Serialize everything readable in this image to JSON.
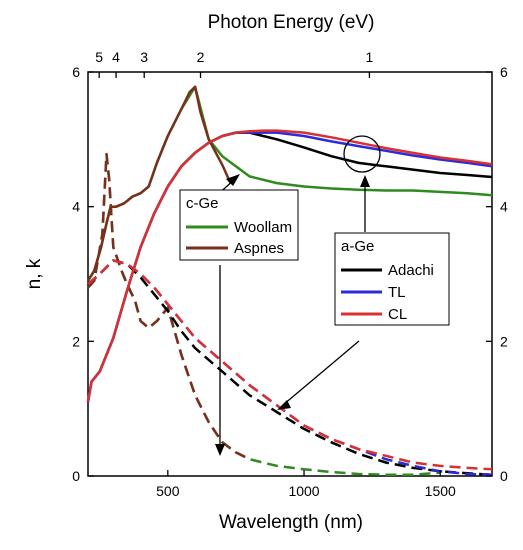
{
  "chart_data": {
    "type": "line",
    "xlabel": "Wavelength (nm)",
    "ylabel": "n, k",
    "top_label": "Photon Energy (eV)",
    "xlim": [
      207,
      1690
    ],
    "ylim": [
      0,
      6
    ],
    "x_ticks": [
      500,
      1000,
      1500
    ],
    "y_ticks": [
      0,
      2,
      4,
      6
    ],
    "top_ticks": [
      {
        "label": "5",
        "ev": 5
      },
      {
        "label": "4",
        "ev": 4
      },
      {
        "label": "3",
        "ev": 3
      },
      {
        "label": "2",
        "ev": 2
      },
      {
        "label": "1",
        "ev": 1
      }
    ],
    "grid": false,
    "series": [
      {
        "name": "Woollam",
        "group": "c-Ge",
        "quantity": "n",
        "style": "solid",
        "color": "#2e8b1e",
        "x": [
          207,
          230,
          255,
          275,
          290,
          310,
          340,
          370,
          400,
          430,
          460,
          500,
          550,
          600,
          650,
          700,
          800,
          900,
          1000,
          1100,
          1200,
          1300,
          1400,
          1500,
          1600,
          1690
        ],
        "y": [
          2.9,
          3.05,
          3.4,
          3.75,
          4.0,
          4.0,
          4.05,
          4.15,
          4.2,
          4.3,
          4.65,
          5.05,
          5.45,
          5.78,
          5.0,
          4.75,
          4.45,
          4.35,
          4.3,
          4.27,
          4.25,
          4.24,
          4.24,
          4.22,
          4.2,
          4.17
        ]
      },
      {
        "name": "Aspnes",
        "group": "c-Ge",
        "quantity": "n",
        "style": "solid",
        "color": "#7a2e1e",
        "x": [
          207,
          230,
          255,
          275,
          290,
          310,
          340,
          370,
          400,
          430,
          460,
          500,
          550,
          580,
          600,
          620,
          650,
          700,
          730
        ],
        "y": [
          2.9,
          3.05,
          3.4,
          3.75,
          4.0,
          4.0,
          4.05,
          4.15,
          4.2,
          4.3,
          4.65,
          5.05,
          5.45,
          5.7,
          5.78,
          5.4,
          5.0,
          4.62,
          4.35
        ]
      },
      {
        "name": "Adachi",
        "group": "a-Ge",
        "quantity": "n",
        "style": "solid",
        "color": "#000000",
        "x": [
          207,
          220,
          250,
          300,
          350,
          400,
          450,
          500,
          550,
          600,
          650,
          700,
          750,
          800,
          850,
          900,
          1000,
          1100,
          1200,
          1300,
          1400,
          1500,
          1600,
          1690
        ],
        "y": [
          1.1,
          1.4,
          1.55,
          2.05,
          2.75,
          3.4,
          3.9,
          4.3,
          4.6,
          4.8,
          4.95,
          5.05,
          5.1,
          5.1,
          5.05,
          5.0,
          4.88,
          4.75,
          4.65,
          4.6,
          4.55,
          4.5,
          4.47,
          4.44
        ]
      },
      {
        "name": "TL",
        "group": "a-Ge",
        "quantity": "n",
        "style": "solid",
        "color": "#2b2bd9",
        "x": [
          207,
          220,
          250,
          300,
          350,
          400,
          450,
          500,
          550,
          600,
          650,
          700,
          750,
          800,
          850,
          900,
          1000,
          1100,
          1200,
          1300,
          1400,
          1500,
          1600,
          1690
        ],
        "y": [
          1.1,
          1.4,
          1.55,
          2.05,
          2.75,
          3.4,
          3.9,
          4.3,
          4.6,
          4.8,
          4.95,
          5.05,
          5.1,
          5.1,
          5.1,
          5.1,
          5.05,
          4.97,
          4.9,
          4.83,
          4.76,
          4.7,
          4.65,
          4.6
        ]
      },
      {
        "name": "CL",
        "group": "a-Ge",
        "quantity": "n",
        "style": "solid",
        "color": "#d93030",
        "x": [
          207,
          220,
          250,
          300,
          350,
          400,
          450,
          500,
          550,
          600,
          650,
          700,
          750,
          800,
          850,
          900,
          1000,
          1100,
          1200,
          1300,
          1400,
          1500,
          1600,
          1690
        ],
        "y": [
          1.1,
          1.4,
          1.55,
          2.05,
          2.75,
          3.4,
          3.9,
          4.3,
          4.6,
          4.8,
          4.95,
          5.05,
          5.1,
          5.12,
          5.13,
          5.13,
          5.1,
          5.03,
          4.95,
          4.87,
          4.8,
          4.73,
          4.68,
          4.63
        ]
      },
      {
        "name": "Woollam",
        "group": "c-Ge",
        "quantity": "k",
        "style": "dashed",
        "color": "#2e8b1e",
        "x": [
          207,
          230,
          260,
          275,
          285,
          300,
          330,
          350,
          380,
          400,
          430,
          460,
          500,
          550,
          600,
          650,
          700,
          750,
          800,
          900,
          1000,
          1100,
          1200,
          1300,
          1400,
          1500
        ],
        "y": [
          2.8,
          2.9,
          3.6,
          4.78,
          4.4,
          3.4,
          3.05,
          2.85,
          2.6,
          2.3,
          2.2,
          2.3,
          2.5,
          1.8,
          1.2,
          0.8,
          0.5,
          0.35,
          0.25,
          0.15,
          0.1,
          0.06,
          0.03,
          0.02,
          0.02,
          0.05
        ]
      },
      {
        "name": "Aspnes",
        "group": "c-Ge",
        "quantity": "k",
        "style": "dashed",
        "color": "#7a2e1e",
        "x": [
          207,
          230,
          260,
          275,
          285,
          300,
          330,
          350,
          380,
          400,
          430,
          460,
          500,
          550,
          600,
          650,
          700,
          750,
          800
        ],
        "y": [
          2.8,
          2.9,
          3.6,
          4.78,
          4.4,
          3.4,
          3.05,
          2.85,
          2.6,
          2.3,
          2.2,
          2.3,
          2.5,
          1.8,
          1.2,
          0.8,
          0.5,
          0.35,
          0.25
        ]
      },
      {
        "name": "Adachi",
        "group": "a-Ge",
        "quantity": "k",
        "style": "dashed",
        "color": "#000000",
        "x": [
          207,
          250,
          300,
          350,
          400,
          450,
          500,
          550,
          600,
          700,
          800,
          900,
          1000,
          1100,
          1200,
          1300,
          1400,
          1500,
          1600,
          1690
        ],
        "y": [
          2.85,
          3.0,
          3.2,
          3.15,
          2.95,
          2.7,
          2.45,
          2.15,
          1.9,
          1.55,
          1.2,
          0.95,
          0.7,
          0.5,
          0.33,
          0.2,
          0.12,
          0.07,
          0.04,
          0.02
        ]
      },
      {
        "name": "TL",
        "group": "a-Ge",
        "quantity": "k",
        "style": "dashed",
        "color": "#2b2bd9",
        "x": [
          207,
          250,
          300,
          350,
          400,
          450,
          500,
          550,
          600,
          700,
          800,
          900,
          1000,
          1100,
          1200,
          1300,
          1400,
          1500,
          1600,
          1690
        ],
        "y": [
          2.85,
          3.0,
          3.2,
          3.15,
          3.0,
          2.8,
          2.55,
          2.3,
          2.05,
          1.7,
          1.35,
          1.05,
          0.75,
          0.55,
          0.4,
          0.25,
          0.15,
          0.07,
          0.03,
          0.02
        ]
      },
      {
        "name": "CL",
        "group": "a-Ge",
        "quantity": "k",
        "style": "dashed",
        "color": "#d93030",
        "x": [
          207,
          250,
          300,
          350,
          400,
          450,
          500,
          550,
          600,
          700,
          800,
          900,
          1000,
          1100,
          1200,
          1300,
          1400,
          1500,
          1600,
          1690
        ],
        "y": [
          2.85,
          3.0,
          3.2,
          3.15,
          3.0,
          2.8,
          2.55,
          2.3,
          2.05,
          1.7,
          1.35,
          1.05,
          0.75,
          0.55,
          0.4,
          0.3,
          0.2,
          0.15,
          0.12,
          0.1
        ]
      }
    ],
    "legends": [
      {
        "title": "c-Ge",
        "entries": [
          {
            "name": "Woollam",
            "color": "#2e8b1e"
          },
          {
            "name": "Aspnes",
            "color": "#7a2e1e"
          }
        ]
      },
      {
        "title": "a-Ge",
        "entries": [
          {
            "name": "Adachi",
            "color": "#000000"
          },
          {
            "name": "TL",
            "color": "#2b2bd9"
          },
          {
            "name": "CL",
            "color": "#d93030"
          }
        ]
      }
    ]
  }
}
